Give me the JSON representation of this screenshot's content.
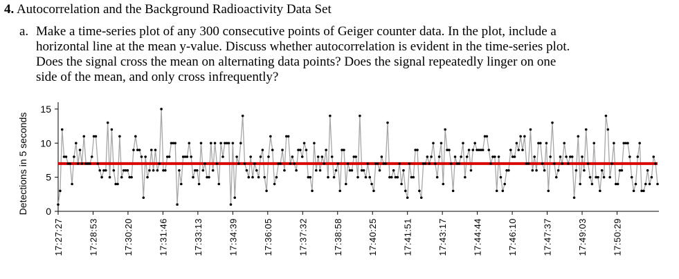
{
  "problem": {
    "number": "4.",
    "title": "Autocorrelation and the Background Radioactivity Data Set",
    "part_label": "a.",
    "lines": [
      "Make a time-series plot of any 300 consecutive points of Geiger counter data.  In the plot, include a",
      "horizontal line at the mean y-value.  Discuss whether autocorrelation is evident in the time-series plot.",
      "Does the signal cross the mean on alternating data points?  Does the signal repeatedly linger on one",
      "side of the mean, and only cross infrequently?"
    ]
  },
  "chart_data": {
    "type": "line",
    "title": "",
    "xlabel": "",
    "ylabel": "Detections in 5 seconds",
    "ylim": [
      0,
      16
    ],
    "yticks": [
      0,
      5,
      10,
      15
    ],
    "x_tick_labels": [
      "17:27:27",
      "17:28:53",
      "17:30:20",
      "17:31:46",
      "17:33:13",
      "17:34:39",
      "17:36:05",
      "17:37:32",
      "17:38:58",
      "17:40:25",
      "17:41:51",
      "17:43:17",
      "17:44:44",
      "17:46:10",
      "17:47:37",
      "17:49:03",
      "17:50:29"
    ],
    "mean": 7,
    "series": [
      {
        "values": [
          1,
          3,
          12,
          8,
          8,
          7,
          7,
          4,
          8,
          10,
          7,
          9,
          7,
          11,
          7,
          7,
          7,
          8,
          11,
          11,
          7,
          6,
          5,
          6,
          6,
          13,
          5,
          12,
          6,
          4,
          4,
          11,
          5,
          6,
          6,
          6,
          5,
          5,
          9,
          11,
          9,
          9,
          8,
          2,
          8,
          5,
          6,
          9,
          6,
          9,
          6,
          7,
          15,
          6,
          6,
          8,
          8,
          10,
          10,
          10,
          1,
          6,
          4,
          8,
          8,
          8,
          10,
          8,
          5,
          6,
          6,
          4,
          10,
          6,
          7,
          5,
          5,
          10,
          6,
          10,
          7,
          4,
          10,
          8,
          10,
          10,
          10,
          1,
          10,
          2,
          8,
          7,
          10,
          14,
          7,
          6,
          5,
          8,
          5,
          7,
          6,
          5,
          8,
          9,
          5,
          3,
          8,
          11,
          9,
          4,
          5,
          7,
          7,
          9,
          6,
          11,
          11,
          7,
          8,
          7,
          6,
          9,
          9,
          8,
          10,
          9,
          5,
          5,
          3,
          10,
          6,
          8,
          6,
          8,
          7,
          9,
          5,
          14,
          8,
          5,
          6,
          7,
          3,
          9,
          9,
          4,
          7,
          6,
          6,
          8,
          8,
          5,
          14,
          6,
          6,
          5,
          7,
          5,
          4,
          3,
          7,
          7,
          6,
          8,
          7,
          7,
          13,
          5,
          5,
          6,
          5,
          5,
          7,
          4,
          6,
          3,
          2,
          7,
          5,
          5,
          9,
          9,
          3,
          2,
          7,
          7,
          8,
          7,
          8,
          10,
          7,
          5,
          8,
          10,
          4,
          12,
          9,
          9,
          7,
          3,
          8,
          7,
          7,
          8,
          10,
          5,
          8,
          9,
          6,
          9,
          10,
          9,
          9,
          9,
          9,
          11,
          11,
          9,
          7,
          8,
          8,
          3,
          8,
          5,
          3,
          4,
          6,
          6,
          9,
          8,
          8,
          10,
          9,
          11,
          9,
          11,
          7,
          7,
          12,
          6,
          8,
          6,
          10,
          10,
          7,
          6,
          10,
          3,
          8,
          13,
          7,
          5,
          6,
          8,
          7,
          10,
          8,
          7,
          8,
          8,
          2,
          6,
          11,
          4,
          8,
          6,
          12,
          7,
          5,
          4,
          10,
          5,
          5,
          3,
          6,
          5,
          14,
          12,
          5,
          7,
          10,
          4,
          4,
          6,
          6,
          10,
          10,
          10,
          8,
          5,
          3,
          4,
          8,
          10,
          3,
          3,
          4,
          6,
          4,
          5,
          8,
          7,
          4
        ]
      }
    ],
    "colors": {
      "series_line": "#a6a6a6",
      "series_point": "#000000",
      "mean_line": "#d90000"
    }
  }
}
